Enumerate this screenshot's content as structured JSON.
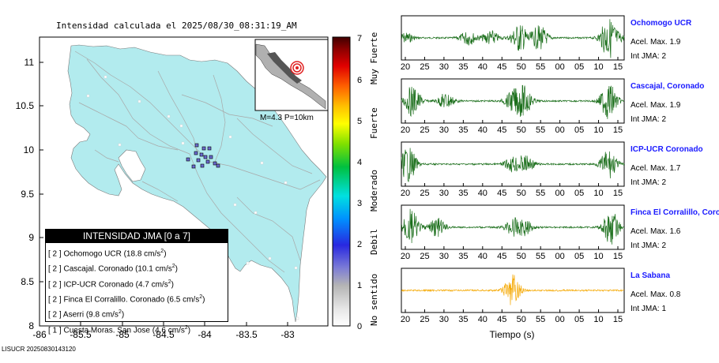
{
  "title": "Intensidad calculada el 2025/08/30_08:31:19_AM",
  "map": {
    "x_ticks": [
      "-86",
      "-85.5",
      "-85",
      "-84.5",
      "-84",
      "-83.5",
      "-83"
    ],
    "y_ticks": [
      "11",
      "10.5",
      "10",
      "9.5",
      "9",
      "8.5",
      "8"
    ],
    "colors": {
      "sea": "#ffffff",
      "land": "#b2ebee",
      "roads": "#a8a8a8",
      "station": "#6b6bd1"
    }
  },
  "inset": {
    "label": "M=4.3 P=10km",
    "epicenter_color": "#e02020"
  },
  "colorbar": {
    "ticks": [
      "0",
      "1",
      "2",
      "3",
      "4",
      "5",
      "6",
      "7"
    ],
    "class_labels": [
      "No sentido",
      "Debil",
      "Moderado",
      "Fuerte",
      "Muy Fuerte"
    ]
  },
  "legend": {
    "title": "INTENSIDAD JMA [0 a 7]",
    "rows": [
      {
        "level": "[ 2 ]",
        "text": "Ochomogo UCR (18.8 cm/s",
        "sup": "2",
        "tail": ")"
      },
      {
        "level": "[ 2 ]",
        "text": "Cascajal. Coronado (10.1 cm/s",
        "sup": "2",
        "tail": ")"
      },
      {
        "level": "[ 2 ]",
        "text": "ICP-UCR Coronado (4.7 cm/s",
        "sup": "2",
        "tail": ")"
      },
      {
        "level": "[ 2 ]",
        "text": "Finca El Corralillo. Coronado (6.5 cm/s",
        "sup": "2",
        "tail": ")"
      },
      {
        "level": "[ 2 ]",
        "text": "Aserri (9.8 cm/s",
        "sup": "2",
        "tail": ")"
      },
      {
        "level": "[ 1 ]",
        "text": "Cuesta Moras. San Jose (4.6 cm/s",
        "sup": "2",
        "tail": ")"
      }
    ]
  },
  "footer": "LISUCR 20250830143120",
  "chart_data": {
    "type": "line",
    "xlabel": "Tiempo (s)",
    "x_tick_labels": [
      "20",
      "25",
      "30",
      "35",
      "40",
      "45",
      "50",
      "55",
      "00",
      "05",
      "10",
      "15"
    ],
    "stations": [
      {
        "name": "Ochomogo UCR",
        "accel": "Acel. Max. 1.9",
        "int": "Int JMA: 2",
        "color": "#1a6e1a",
        "bursts": [
          [
            0.02,
            0.25
          ],
          [
            0.3,
            0.35
          ],
          [
            0.4,
            0.35
          ],
          [
            0.53,
            0.7
          ],
          [
            0.62,
            0.6
          ],
          [
            0.95,
            0.12
          ],
          [
            1.0,
            0.08
          ],
          [
            0.93,
            0.95
          ]
        ]
      },
      {
        "name": "Cascajal, Coronado",
        "accel": "Acel. Max. 1.9",
        "int": "Int JMA: 2",
        "color": "#1a6e1a",
        "bursts": [
          [
            0.05,
            0.75
          ],
          [
            0.5,
            0.45
          ],
          [
            0.55,
            0.7
          ],
          [
            0.2,
            0.4
          ],
          [
            0.93,
            0.9
          ]
        ]
      },
      {
        "name": "ICP-UCR Coronado",
        "accel": "Acel. Max. 1.7",
        "int": "Int JMA: 2",
        "color": "#1a6e1a",
        "bursts": [
          [
            0.03,
            0.85
          ],
          [
            0.5,
            0.35
          ],
          [
            0.56,
            0.4
          ],
          [
            0.93,
            0.7
          ]
        ]
      },
      {
        "name": "Finca El Corralillo, Coronado",
        "accel": "Acel. Max. 1.6",
        "int": "Int JMA: 2",
        "color": "#1a6e1a",
        "bursts": [
          [
            0.04,
            0.9
          ],
          [
            0.16,
            0.45
          ],
          [
            0.5,
            0.35
          ],
          [
            0.55,
            0.4
          ],
          [
            0.94,
            0.85
          ]
        ]
      },
      {
        "name": "La Sabana",
        "accel": "Acel. Max. 0.8",
        "int": "Int JMA: 1",
        "color": "#f5a800",
        "bursts": [
          [
            0.5,
            0.8
          ]
        ]
      }
    ]
  }
}
